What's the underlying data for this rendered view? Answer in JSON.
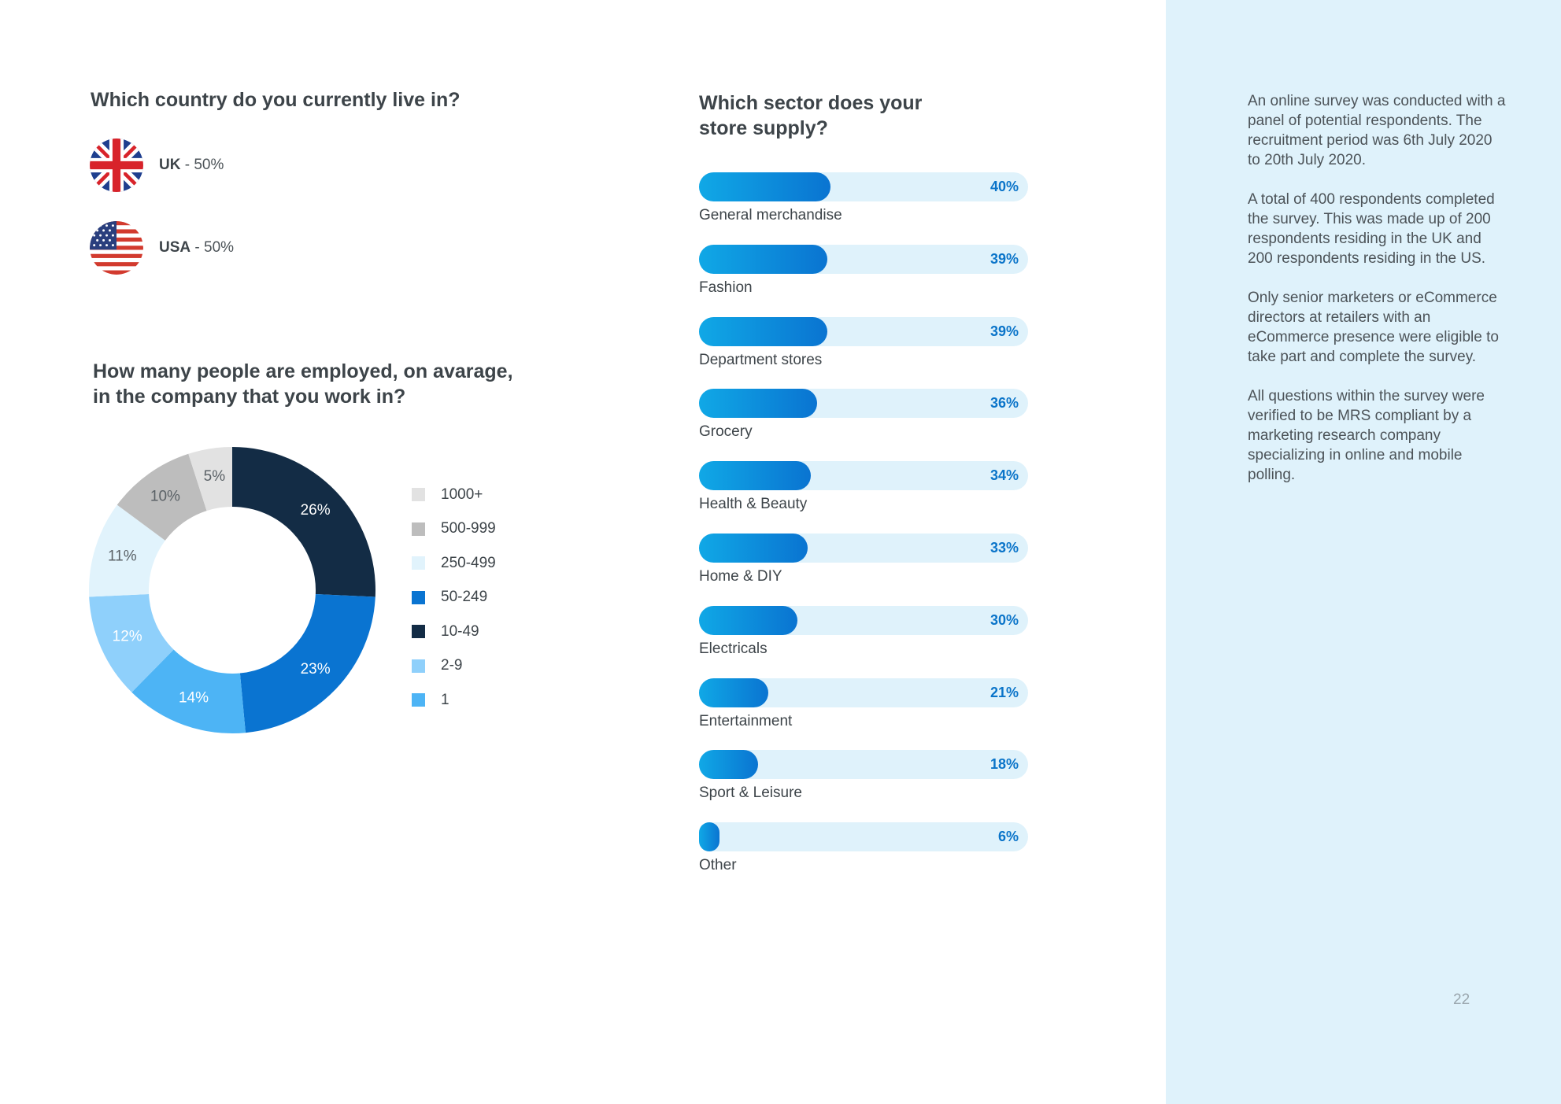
{
  "page": {
    "number": "22"
  },
  "country": {
    "heading": "Which country do you currently live in?",
    "items": [
      {
        "name": "UK",
        "value": " - 50%",
        "icon": "uk-flag-icon"
      },
      {
        "name": "USA",
        "value": " - 50%",
        "icon": "usa-flag-icon"
      }
    ]
  },
  "employees": {
    "heading": "How many people are employed, on avarage, in the company that you work in?"
  },
  "sector": {
    "heading": "Which sector does your store supply?"
  },
  "side_panel": {
    "paragraphs": [
      "An online survey was conducted with a panel of potential respondents. The recruitment period was 6th July 2020 to 20th July 2020.",
      "A total of 400 respondents completed the survey. This was made up of 200 respondents residing in the UK and 200 respondents residing in the US.",
      "Only senior marketers or eCommerce directors at retailers with an eCommerce presence were eligible to take part and complete the survey.",
      "All questions within the survey were verified to be MRS compliant by a marketing research company specializing in online and mobile polling."
    ]
  },
  "colors": {
    "panel_bg": "#dff2fb",
    "accent": "#0a74c9",
    "bar_gradient_start": "#10a8e6",
    "bar_gradient_end": "#0a74d1"
  },
  "chart_data": [
    {
      "type": "pie",
      "variant": "donut",
      "title": "How many people are employed, on avarage, in the company that you work in?",
      "legend_position": "right",
      "slices": [
        {
          "label": "10-49",
          "value": 26,
          "display": "26%",
          "color": "#132c45",
          "text_color": "#ffffff"
        },
        {
          "label": "50-249",
          "value": 23,
          "display": "23%",
          "color": "#0a74d1",
          "text_color": "#ffffff"
        },
        {
          "label": "1",
          "value": 14,
          "display": "14%",
          "color": "#4db4f5",
          "text_color": "#ffffff"
        },
        {
          "label": "2-9",
          "value": 12,
          "display": "12%",
          "color": "#8fd0fb",
          "text_color": "#ffffff"
        },
        {
          "label": "250-499",
          "value": 11,
          "display": "11%",
          "color": "#e1f3fc",
          "text_color": "#5a6166"
        },
        {
          "label": "500-999",
          "value": 10,
          "display": "10%",
          "color": "#bdbdbd",
          "text_color": "#5a6166"
        },
        {
          "label": "1000+",
          "value": 5,
          "display": "5%",
          "color": "#e2e2e2",
          "text_color": "#5a6166"
        }
      ],
      "legend": [
        {
          "label": "1000+",
          "color": "#e2e2e2"
        },
        {
          "label": "500-999",
          "color": "#bdbdbd"
        },
        {
          "label": "250-499",
          "color": "#e1f3fc"
        },
        {
          "label": "50-249",
          "color": "#0a74d1"
        },
        {
          "label": "10-49",
          "color": "#132c45"
        },
        {
          "label": "2-9",
          "color": "#8fd0fb"
        },
        {
          "label": "1",
          "color": "#4db4f5"
        }
      ]
    },
    {
      "type": "bar",
      "orientation": "horizontal",
      "title": "Which sector does your store supply?",
      "unit": "%",
      "xlim": [
        0,
        100
      ],
      "categories": [
        "General merchandise",
        "Fashion",
        "Department stores",
        "Grocery",
        "Health & Beauty",
        "Home & DIY",
        "Electricals",
        "Entertainment",
        "Sport & Leisure",
        "Other"
      ],
      "values": [
        40,
        39,
        39,
        36,
        34,
        33,
        30,
        21,
        18,
        6
      ],
      "labels": [
        "40%",
        "39%",
        "39%",
        "36%",
        "34%",
        "33%",
        "30%",
        "21%",
        "18%",
        "6%"
      ]
    }
  ]
}
